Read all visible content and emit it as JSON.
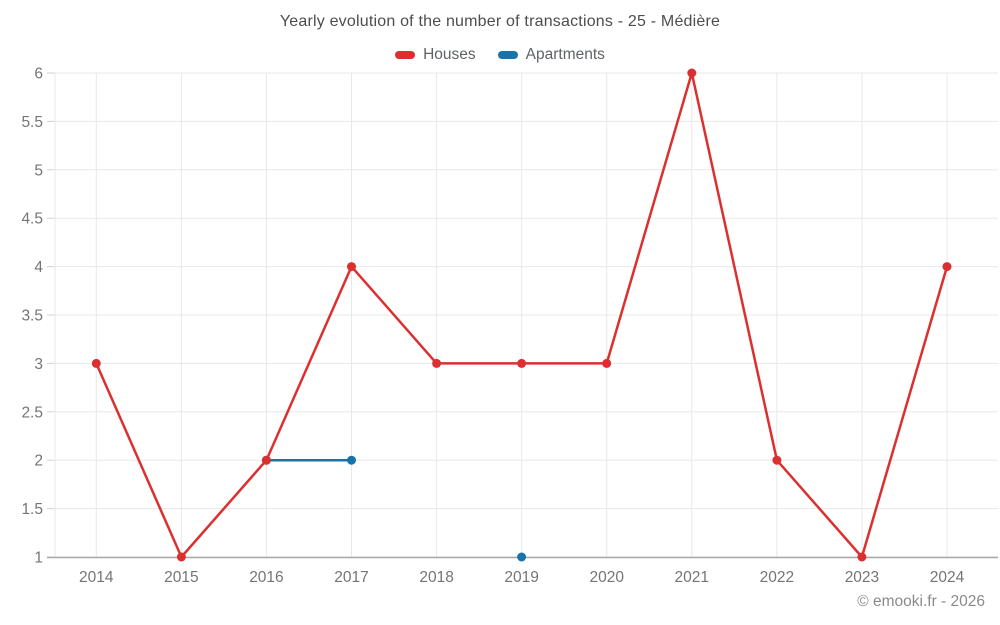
{
  "title": "Yearly evolution of the number of transactions - 25 - Médière",
  "watermark": "© emooki.fr - 2026",
  "colors": {
    "houses": "#dc3030",
    "apartments": "#1873ac",
    "grid": "#e8e8e8",
    "axis_line": "#a8a8a8",
    "tick": "#d2d2d2",
    "axis_label": "#757575",
    "title_text": "#4d4d4d",
    "legend_text": "#5f6368",
    "background": "#ffffff"
  },
  "legend": {
    "items": [
      {
        "label": "Houses",
        "color_key": "houses"
      },
      {
        "label": "Apartments",
        "color_key": "apartments"
      }
    ]
  },
  "chart_data": {
    "type": "line",
    "title": "Yearly evolution of the number of transactions - 25 - Médière",
    "x": [
      2014,
      2015,
      2016,
      2017,
      2018,
      2019,
      2020,
      2021,
      2022,
      2023,
      2024
    ],
    "series": [
      {
        "name": "Apartments",
        "color_key": "apartments",
        "values": [
          null,
          null,
          2,
          2,
          null,
          1,
          null,
          null,
          null,
          null,
          null
        ]
      },
      {
        "name": "Houses",
        "color_key": "houses",
        "values": [
          3,
          1,
          2,
          4,
          3,
          3,
          3,
          6,
          2,
          1,
          4
        ]
      }
    ],
    "xlabel": "",
    "ylabel": "",
    "ylim": [
      1,
      6
    ],
    "ytick_step": 0.5,
    "grid": true,
    "legend_position": "top"
  }
}
